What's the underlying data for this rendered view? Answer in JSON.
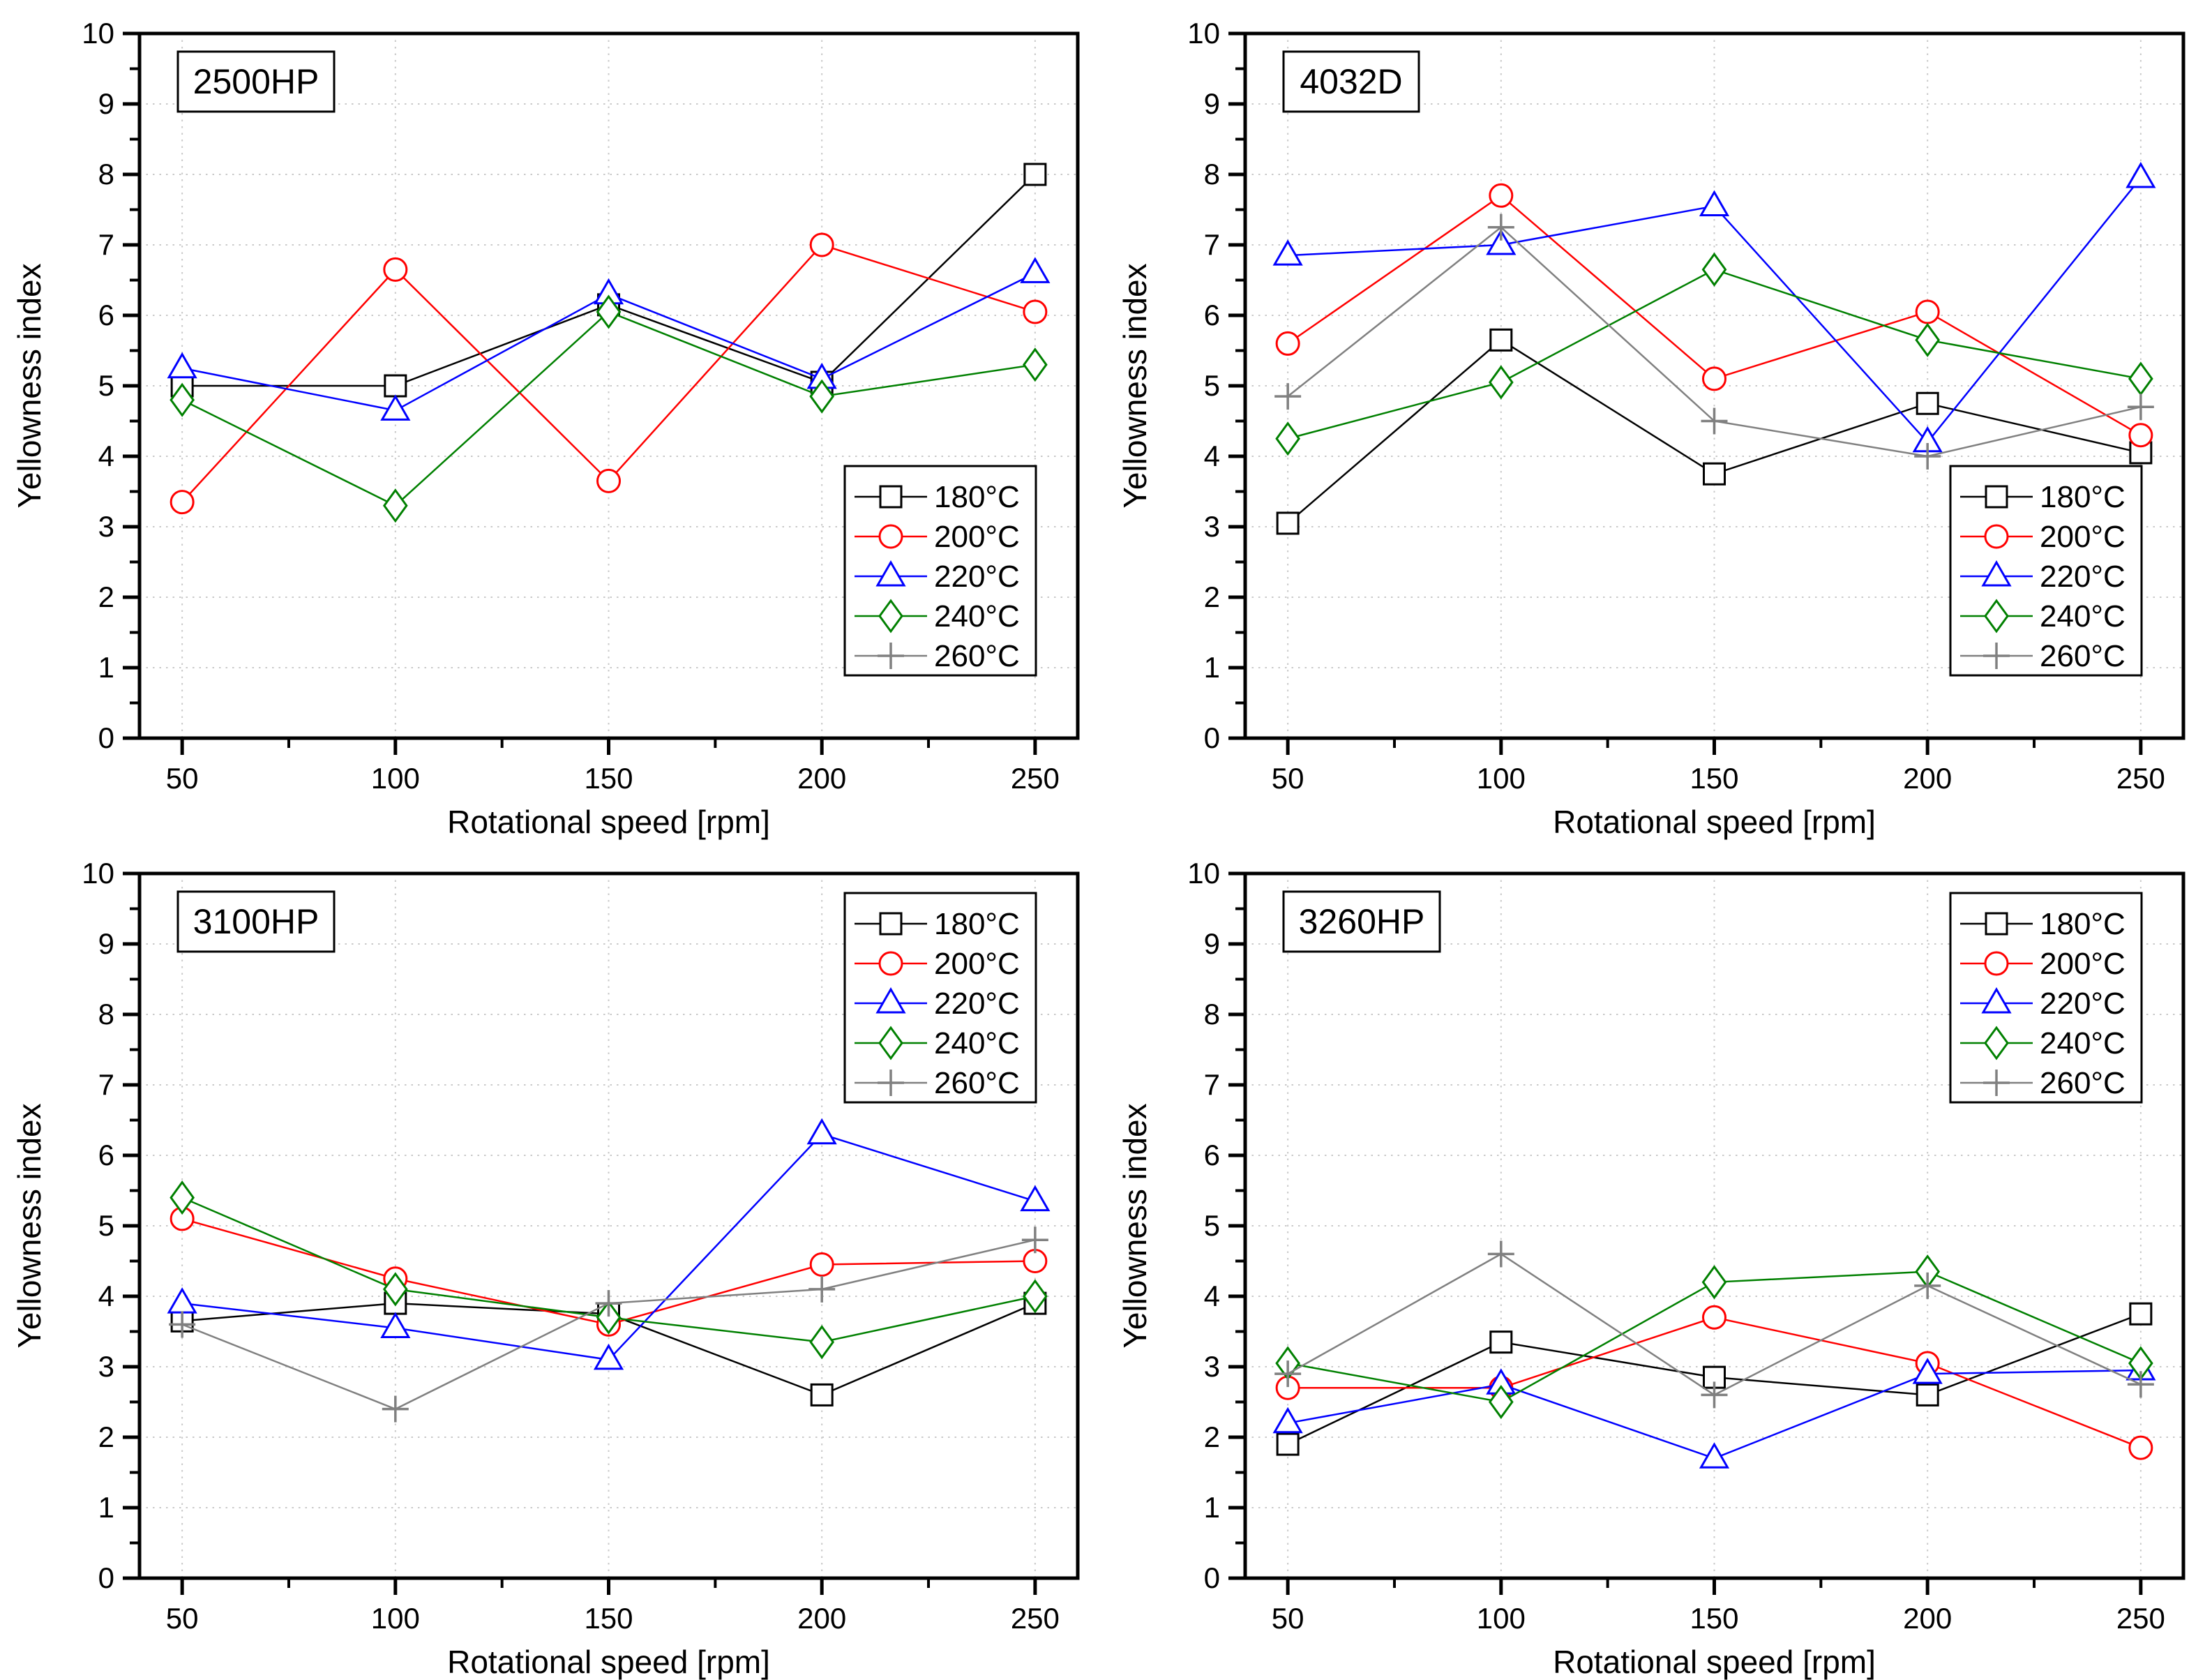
{
  "page": {
    "background": "#ffffff",
    "figure_type": "2x2 grid of line charts"
  },
  "colors": {
    "black": "#000000",
    "red": "#ff0000",
    "blue": "#0000ff",
    "green": "#008000",
    "gray": "#808080",
    "grid": "#c9c9c9",
    "spine": "#000000",
    "marker_fill": "#ffffff"
  },
  "chart_data": [
    {
      "type": "line",
      "title": "2500HP",
      "xlabel": "Rotational speed [rpm]",
      "ylabel": "Yellowness index",
      "x": [
        50,
        100,
        150,
        200,
        250
      ],
      "xlim": [
        40,
        260
      ],
      "ylim": [
        0,
        10
      ],
      "x_major_ticks": [
        50,
        100,
        150,
        200,
        250
      ],
      "x_minor_ticks": [
        75,
        125,
        175,
        225
      ],
      "y_major_ticks": [
        0,
        1,
        2,
        3,
        4,
        5,
        6,
        7,
        8,
        9,
        10
      ],
      "grid": true,
      "legend_position": "bottom-right",
      "series": [
        {
          "name": "180°C",
          "color_key": "black",
          "marker": "square",
          "values": [
            5.0,
            5.0,
            6.15,
            5.05,
            8.0
          ]
        },
        {
          "name": "200°C",
          "color_key": "red",
          "marker": "circle",
          "values": [
            3.35,
            6.65,
            3.65,
            7.0,
            6.05
          ]
        },
        {
          "name": "220°C",
          "color_key": "blue",
          "marker": "triangle",
          "values": [
            5.25,
            4.65,
            6.3,
            5.1,
            6.6
          ]
        },
        {
          "name": "240°C",
          "color_key": "green",
          "marker": "diamond",
          "values": [
            4.8,
            3.3,
            6.05,
            4.85,
            5.3
          ]
        },
        {
          "name": "260°C",
          "color_key": "gray",
          "marker": "plus",
          "values": []
        }
      ]
    },
    {
      "type": "line",
      "title": "4032D",
      "xlabel": "Rotational speed [rpm]",
      "ylabel": "Yellowness index",
      "x": [
        50,
        100,
        150,
        200,
        250
      ],
      "xlim": [
        40,
        260
      ],
      "ylim": [
        0,
        10
      ],
      "x_major_ticks": [
        50,
        100,
        150,
        200,
        250
      ],
      "x_minor_ticks": [
        75,
        125,
        175,
        225
      ],
      "y_major_ticks": [
        0,
        1,
        2,
        3,
        4,
        5,
        6,
        7,
        8,
        9,
        10
      ],
      "grid": true,
      "legend_position": "bottom-right",
      "series": [
        {
          "name": "180°C",
          "color_key": "black",
          "marker": "square",
          "values": [
            3.05,
            5.65,
            3.75,
            4.75,
            4.05
          ]
        },
        {
          "name": "200°C",
          "color_key": "red",
          "marker": "circle",
          "values": [
            5.6,
            7.7,
            5.1,
            6.05,
            4.3
          ]
        },
        {
          "name": "220°C",
          "color_key": "blue",
          "marker": "triangle",
          "values": [
            6.85,
            7.0,
            7.55,
            4.2,
            7.95
          ]
        },
        {
          "name": "240°C",
          "color_key": "green",
          "marker": "diamond",
          "values": [
            4.25,
            5.05,
            6.65,
            5.65,
            5.1
          ]
        },
        {
          "name": "260°C",
          "color_key": "gray",
          "marker": "plus",
          "values": [
            4.85,
            7.25,
            4.5,
            4.0,
            4.7
          ]
        }
      ]
    },
    {
      "type": "line",
      "title": "3100HP",
      "xlabel": "Rotational speed [rpm]",
      "ylabel": "Yellowness index",
      "x": [
        50,
        100,
        150,
        200,
        250
      ],
      "xlim": [
        40,
        260
      ],
      "ylim": [
        0,
        10
      ],
      "x_major_ticks": [
        50,
        100,
        150,
        200,
        250
      ],
      "x_minor_ticks": [
        75,
        125,
        175,
        225
      ],
      "y_major_ticks": [
        0,
        1,
        2,
        3,
        4,
        5,
        6,
        7,
        8,
        9,
        10
      ],
      "grid": true,
      "legend_position": "top-right",
      "series": [
        {
          "name": "180°C",
          "color_key": "black",
          "marker": "square",
          "values": [
            3.65,
            3.9,
            3.75,
            2.6,
            3.9
          ]
        },
        {
          "name": "200°C",
          "color_key": "red",
          "marker": "circle",
          "values": [
            5.1,
            4.25,
            3.6,
            4.45,
            4.5
          ]
        },
        {
          "name": "220°C",
          "color_key": "blue",
          "marker": "triangle",
          "values": [
            3.9,
            3.55,
            3.1,
            6.3,
            5.35
          ]
        },
        {
          "name": "240°C",
          "color_key": "green",
          "marker": "diamond",
          "values": [
            5.4,
            4.1,
            3.7,
            3.35,
            4.0
          ]
        },
        {
          "name": "260°C",
          "color_key": "gray",
          "marker": "plus",
          "values": [
            3.6,
            2.4,
            3.9,
            4.1,
            4.8
          ]
        }
      ]
    },
    {
      "type": "line",
      "title": "3260HP",
      "xlabel": "Rotational speed [rpm]",
      "ylabel": "Yellowness index",
      "x": [
        50,
        100,
        150,
        200,
        250
      ],
      "xlim": [
        40,
        260
      ],
      "ylim": [
        0,
        10
      ],
      "x_major_ticks": [
        50,
        100,
        150,
        200,
        250
      ],
      "x_minor_ticks": [
        75,
        125,
        175,
        225
      ],
      "y_major_ticks": [
        0,
        1,
        2,
        3,
        4,
        5,
        6,
        7,
        8,
        9,
        10
      ],
      "grid": true,
      "legend_position": "top-right",
      "series": [
        {
          "name": "180°C",
          "color_key": "black",
          "marker": "square",
          "values": [
            1.9,
            3.35,
            2.85,
            2.6,
            3.75
          ]
        },
        {
          "name": "200°C",
          "color_key": "red",
          "marker": "circle",
          "values": [
            2.7,
            2.7,
            3.7,
            3.05,
            1.85
          ]
        },
        {
          "name": "220°C",
          "color_key": "blue",
          "marker": "triangle",
          "values": [
            2.2,
            2.75,
            1.7,
            2.9,
            2.95
          ]
        },
        {
          "name": "240°C",
          "color_key": "green",
          "marker": "diamond",
          "values": [
            3.05,
            2.5,
            4.2,
            4.35,
            3.05
          ]
        },
        {
          "name": "260°C",
          "color_key": "gray",
          "marker": "plus",
          "values": [
            2.9,
            4.6,
            2.6,
            4.15,
            2.75
          ]
        }
      ]
    }
  ]
}
